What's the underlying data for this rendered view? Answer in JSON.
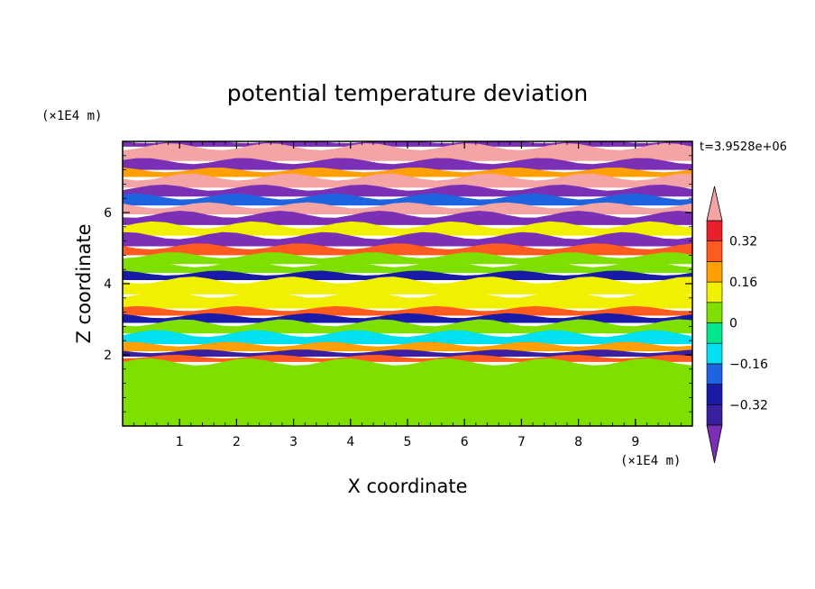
{
  "chart_data": {
    "type": "heatmap",
    "title": "potential temperature deviation",
    "xlabel": "X coordinate",
    "ylabel": "Z coordinate",
    "x_unit": "(×1E4 m)",
    "y_unit": "(×1E4 m)",
    "time_label": "t=3.9528e+06",
    "xlim": [
      0,
      10
    ],
    "ylim": [
      0,
      8
    ],
    "x_ticks": [
      "1",
      "2",
      "3",
      "4",
      "5",
      "6",
      "7",
      "8",
      "9"
    ],
    "y_ticks": [
      "2",
      "4",
      "6"
    ],
    "colorbar": {
      "levels": [
        -0.4,
        -0.32,
        -0.24,
        -0.16,
        -0.08,
        0,
        0.08,
        0.16,
        0.24,
        0.32,
        0.4
      ],
      "tick_labels": [
        "0.32",
        "0.16",
        "0",
        "−0.16",
        "−0.32"
      ],
      "tick_values": [
        0.32,
        0.16,
        0,
        -0.16,
        -0.32
      ],
      "colors_low_to_high": [
        "#7b2fb4",
        "#3a1f9e",
        "#1a1aa8",
        "#1e64e0",
        "#00e0f0",
        "#00e68a",
        "#7fe000",
        "#f0f000",
        "#ffa000",
        "#ff5a20",
        "#e8202a",
        "#f4a4a4"
      ],
      "extend": "both"
    },
    "bands": [
      {
        "z": [
          7.85,
          8.0
        ],
        "value": -0.45
      },
      {
        "z": [
          7.45,
          7.85
        ],
        "value": 0.45
      },
      {
        "z": [
          7.2,
          7.45
        ],
        "value": -0.45
      },
      {
        "z": [
          7.0,
          7.2
        ],
        "value": 0.2
      },
      {
        "z": [
          6.7,
          7.0
        ],
        "value": 0.45
      },
      {
        "z": [
          6.45,
          6.7
        ],
        "value": -0.45
      },
      {
        "z": [
          6.2,
          6.45
        ],
        "value": -0.2
      },
      {
        "z": [
          5.95,
          6.2
        ],
        "value": 0.45
      },
      {
        "z": [
          5.65,
          5.95
        ],
        "value": -0.45
      },
      {
        "z": [
          5.35,
          5.65
        ],
        "value": 0.1
      },
      {
        "z": [
          5.05,
          5.35
        ],
        "value": -0.45
      },
      {
        "z": [
          4.8,
          5.05
        ],
        "value": 0.25
      },
      {
        "z": [
          4.55,
          4.8
        ],
        "value": 0.05
      },
      {
        "z": [
          4.3,
          4.55
        ],
        "value": 0.05
      },
      {
        "z": [
          4.1,
          4.3
        ],
        "value": -0.25
      },
      {
        "z": [
          3.7,
          4.1
        ],
        "value": 0.08
      },
      {
        "z": [
          3.3,
          3.7
        ],
        "value": 0.1
      },
      {
        "z": [
          3.1,
          3.3
        ],
        "value": 0.3
      },
      {
        "z": [
          2.9,
          3.1
        ],
        "value": -0.3
      },
      {
        "z": [
          2.6,
          2.9
        ],
        "value": 0.05
      },
      {
        "z": [
          2.3,
          2.6
        ],
        "value": -0.1
      },
      {
        "z": [
          2.1,
          2.3
        ],
        "value": 0.2
      },
      {
        "z": [
          1.95,
          2.1
        ],
        "value": -0.35
      },
      {
        "z": [
          1.8,
          1.95
        ],
        "value": 0.3
      },
      {
        "z": [
          0.0,
          1.8
        ],
        "value": 0.07
      }
    ]
  }
}
